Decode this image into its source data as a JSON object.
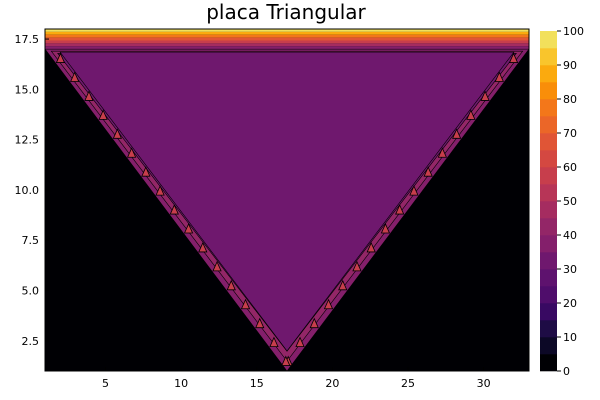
{
  "chart_data": {
    "type": "heatmap",
    "title": "placa Triangular",
    "xlabel": "",
    "ylabel": "",
    "xlim": [
      1,
      33
    ],
    "ylim": [
      1,
      18
    ],
    "x_ticks": [
      5,
      10,
      15,
      20,
      25,
      30
    ],
    "x_tick_labels": [
      "5",
      "10",
      "15",
      "20",
      "25",
      "30"
    ],
    "y_ticks": [
      2.5,
      5.0,
      7.5,
      10.0,
      12.5,
      15.0,
      17.5
    ],
    "y_tick_labels": [
      "2.5",
      "5.0",
      "7.5",
      "10.0",
      "12.5",
      "15.0",
      "17.5"
    ],
    "colorbar": {
      "min": 0,
      "max": 100,
      "levels": [
        0,
        5,
        10,
        15,
        20,
        25,
        30,
        35,
        40,
        45,
        50,
        55,
        60,
        65,
        70,
        75,
        80,
        85,
        90,
        95,
        100
      ],
      "colors": [
        "#000004",
        "#0c0826",
        "#1e0c45",
        "#380962",
        "#4f0d6b",
        "#5e126e",
        "#6f186e",
        "#841f6b",
        "#932667",
        "#a52c60",
        "#b73557",
        "#c73e4c",
        "#d44841",
        "#e05536",
        "#eb6628",
        "#f3771a",
        "#f98e09",
        "#fbaa0e",
        "#f9c52c",
        "#f2e05b"
      ],
      "tick_values": [
        0,
        10,
        20,
        30,
        40,
        50,
        60,
        70,
        80,
        90,
        100
      ],
      "tick_labels": [
        "0",
        "10",
        "20",
        "30",
        "40",
        "50",
        "60",
        "70",
        "80",
        "90",
        "100"
      ]
    },
    "field": {
      "description_values": {
        "outside_region": 0,
        "interior_plate": 30,
        "slanted_edges": 45,
        "top_edge": 100
      },
      "triangle_vertices": [
        [
          1,
          17
        ],
        [
          33,
          17
        ],
        [
          17,
          1
        ]
      ],
      "top_edge_y": 18,
      "grid_x": [
        1,
        33
      ],
      "grid_y": [
        1,
        18
      ]
    }
  }
}
